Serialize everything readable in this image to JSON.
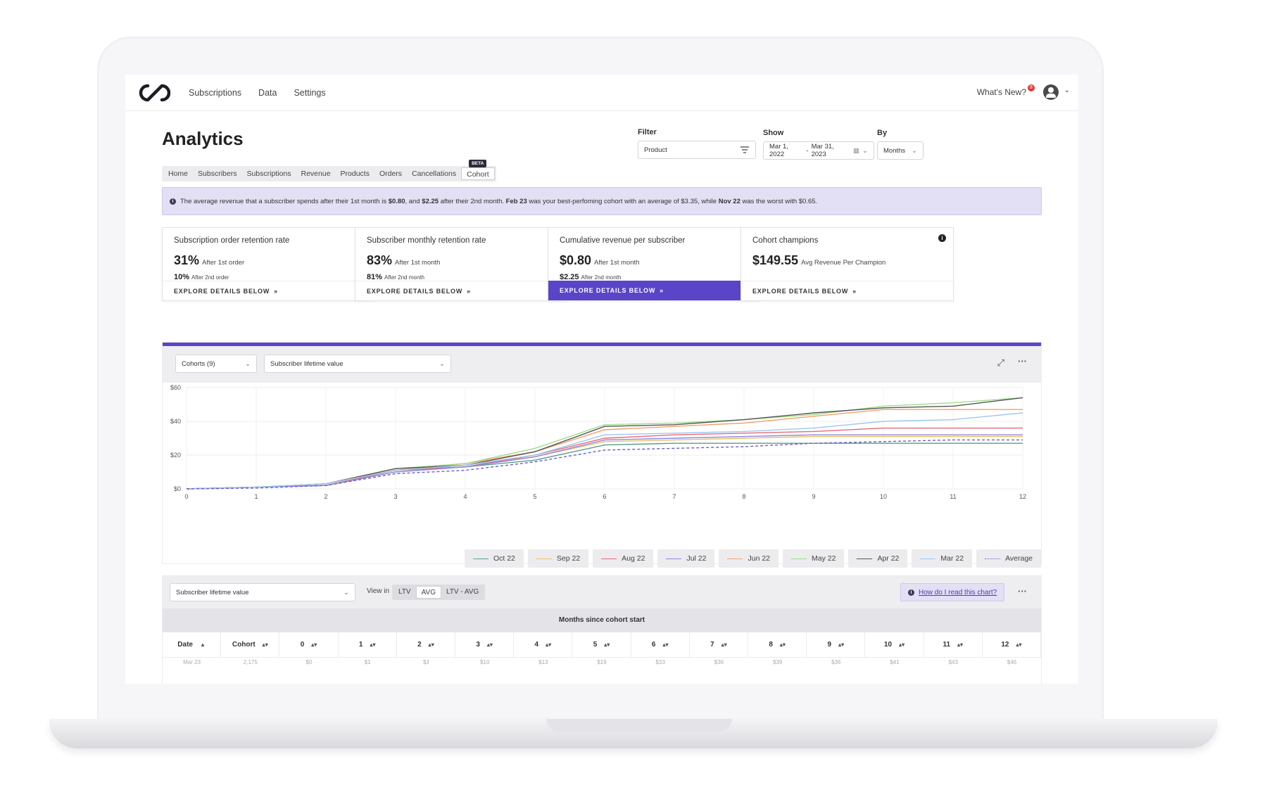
{
  "nav": {
    "links": [
      "Subscriptions",
      "Data",
      "Settings"
    ],
    "whats_new": "What's New?",
    "notif_count": "8"
  },
  "page": {
    "title": "Analytics",
    "tabs": [
      "Home",
      "Subscribers",
      "Subscriptions",
      "Revenue",
      "Products",
      "Orders",
      "Cancellations",
      "Cohort"
    ],
    "active_tab": "Cohort",
    "beta_badge": "BETA"
  },
  "filters": {
    "filter_label": "Filter",
    "filter_value": "Product",
    "show_label": "Show",
    "date_start": "Mar 1, 2022",
    "date_sep": "-",
    "date_end": "Mar 31, 2023",
    "by_label": "By",
    "by_value": "Months"
  },
  "banner": {
    "t1": "The average revenue that a subscriber spends after their 1st month is ",
    "v1": "$0.80",
    "t2": ", and ",
    "v2": "$2.25",
    "t3": " after their 2nd month. ",
    "best": "Feb 23",
    "t4": " was your best-perfoming cohort with an average of $3.35, while ",
    "worst": "Nov 22",
    "t5": " was the worst with $0.65."
  },
  "cards": [
    {
      "title": "Subscription order retention rate",
      "big": "31%",
      "big_sub": "After 1st order",
      "small": "10%",
      "small_sub": "After 2nd order",
      "footer": "EXPLORE DETAILS BELOW",
      "active": false
    },
    {
      "title": "Subscriber monthly retention rate",
      "big": "83%",
      "big_sub": "After 1st month",
      "small": "81%",
      "small_sub": "After 2nd month",
      "footer": "EXPLORE DETAILS BELOW",
      "active": false
    },
    {
      "title": "Cumulative revenue per subscriber",
      "big": "$0.80",
      "big_sub": "After 1st month",
      "small": "$2.25",
      "small_sub": "After 2nd month",
      "footer": "EXPLORE DETAILS BELOW",
      "active": true
    },
    {
      "title": "Cohort champions",
      "big": "$149.55",
      "big_sub": "Avg Revenue Per Champion",
      "small": "",
      "small_sub": "",
      "footer": "EXPLORE DETAILS BELOW",
      "active": false
    }
  ],
  "chart_toolbar": {
    "cohorts_select": "Cohorts (9)",
    "metric_select": "Subscriber lifetime value"
  },
  "chart_data": {
    "type": "line",
    "x": [
      0,
      1,
      2,
      3,
      4,
      5,
      6,
      7,
      8,
      9,
      10,
      11,
      12
    ],
    "ylim": [
      0,
      60
    ],
    "yticks": [
      "$0",
      "$20",
      "$40",
      "$60"
    ],
    "ytick_values": [
      0,
      20,
      40,
      60
    ],
    "grid": true,
    "legend_position": "bottom-right",
    "series": [
      {
        "name": "Oct 22",
        "color": "#5b9e8c",
        "dashed": false,
        "values": [
          0,
          1,
          2,
          11,
          13,
          17,
          26,
          27,
          27,
          27,
          27,
          27,
          27
        ]
      },
      {
        "name": "Sep 22",
        "color": "#e8c06a",
        "dashed": false,
        "values": [
          0,
          1,
          2,
          11,
          14,
          19,
          28,
          29,
          30,
          31,
          31,
          31,
          31
        ]
      },
      {
        "name": "Aug 22",
        "color": "#e56a7a",
        "dashed": false,
        "values": [
          0,
          1,
          2,
          11,
          13,
          20,
          30,
          32,
          33,
          34,
          36,
          36,
          36
        ]
      },
      {
        "name": "Jul 22",
        "color": "#8f86e3",
        "dashed": false,
        "values": [
          0,
          1,
          2,
          10,
          13,
          19,
          29,
          30,
          31,
          32,
          32,
          32,
          32
        ]
      },
      {
        "name": "Jun 22",
        "color": "#f2a06a",
        "dashed": false,
        "values": [
          0,
          1,
          3,
          11,
          15,
          22,
          35,
          37,
          39,
          43,
          47,
          47,
          47
        ]
      },
      {
        "name": "May 22",
        "color": "#9fdc8a",
        "dashed": false,
        "values": [
          0,
          1,
          3,
          12,
          15,
          24,
          38,
          39,
          41,
          44,
          49,
          51,
          54
        ]
      },
      {
        "name": "Apr 22",
        "color": "#555555",
        "dashed": false,
        "values": [
          0,
          1,
          3,
          12,
          14,
          22,
          37,
          38,
          41,
          45,
          48,
          49,
          54
        ]
      },
      {
        "name": "Mar 22",
        "color": "#9ec7f0",
        "dashed": false,
        "values": [
          0,
          1,
          3,
          11,
          14,
          20,
          32,
          33,
          34,
          36,
          40,
          41,
          45
        ]
      },
      {
        "name": "Average",
        "color": "#6b5fc4",
        "dashed": true,
        "values": [
          0,
          0.5,
          2,
          9,
          11,
          16,
          23,
          24,
          25,
          27,
          28,
          29,
          29
        ]
      }
    ]
  },
  "table": {
    "metric_select": "Subscriber lifetime value",
    "view_in_label": "View in",
    "view_options": [
      "LTV",
      "AVG",
      "LTV - AVG"
    ],
    "active_view": "AVG",
    "howto_link": "How do I read this chart?",
    "months_header": "Months since cohort start",
    "columns": [
      "Date",
      "Cohort",
      "0",
      "1",
      "2",
      "3",
      "4",
      "5",
      "6",
      "7",
      "8",
      "9",
      "10",
      "11",
      "12"
    ],
    "partial_row": [
      "Mar 23",
      "2,175",
      "$0",
      "$1",
      "$3",
      "$10",
      "$13",
      "$19",
      "$33",
      "$36",
      "$39",
      "$36",
      "$41",
      "$43",
      "$46"
    ]
  },
  "icons": {
    "menu": "more-horizontal-icon",
    "expand": "expand-icon",
    "filter": "filter-lines-icon",
    "calendar": "calendar-icon",
    "chevron": "chevron-down-icon"
  }
}
